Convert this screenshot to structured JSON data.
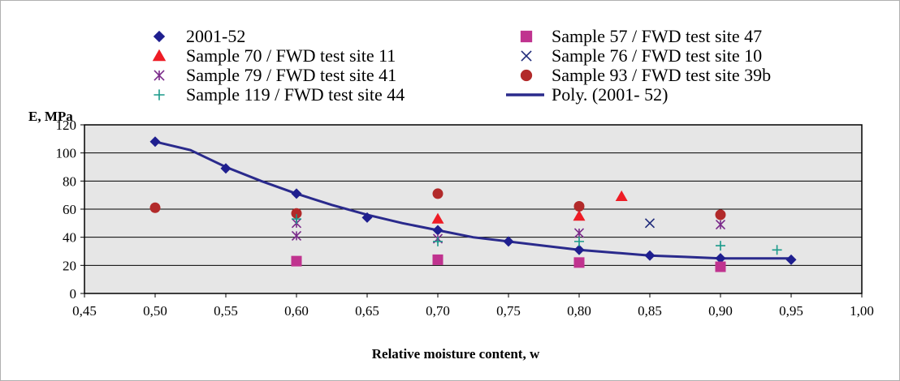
{
  "chart_data": {
    "type": "scatter",
    "xlabel": "Relative moisture content, w",
    "ylabel": "E, MPa",
    "xlim": [
      0.45,
      1.0
    ],
    "ylim": [
      0,
      120
    ],
    "x_ticks": [
      "0,45",
      "0,50",
      "0,55",
      "0,60",
      "0,65",
      "0,70",
      "0,75",
      "0,80",
      "0,85",
      "0,90",
      "0,95",
      "1,00"
    ],
    "y_ticks": [
      "0",
      "20",
      "40",
      "60",
      "80",
      "100",
      "120"
    ],
    "grid": "horizontal",
    "legend_position": "top",
    "series": [
      {
        "name": "2001-52",
        "marker": "diamond",
        "color": "#1f1f8f",
        "points": [
          [
            0.5,
            108
          ],
          [
            0.55,
            89
          ],
          [
            0.6,
            71
          ],
          [
            0.65,
            54
          ],
          [
            0.7,
            45
          ],
          [
            0.75,
            37
          ],
          [
            0.8,
            31
          ],
          [
            0.85,
            27
          ],
          [
            0.9,
            25
          ],
          [
            0.95,
            24
          ]
        ]
      },
      {
        "name": "Sample 57 / FWD test site 47",
        "marker": "square",
        "color": "#c0338f",
        "points": [
          [
            0.6,
            23
          ],
          [
            0.7,
            24
          ],
          [
            0.8,
            22
          ],
          [
            0.9,
            19
          ]
        ]
      },
      {
        "name": "Sample 70 / FWD test site 11",
        "marker": "triangle",
        "color": "#ee1c25",
        "points": [
          [
            0.7,
            53
          ],
          [
            0.8,
            55
          ],
          [
            0.83,
            69
          ]
        ]
      },
      {
        "name": "Sample 76 / FWD test site 10",
        "marker": "x",
        "color": "#1f2a7a",
        "points": [
          [
            0.85,
            50
          ]
        ]
      },
      {
        "name": "Sample 79 / FWD test site 41",
        "marker": "star",
        "color": "#7a2a8a",
        "points": [
          [
            0.6,
            41
          ],
          [
            0.6,
            50
          ],
          [
            0.7,
            39
          ],
          [
            0.8,
            43
          ],
          [
            0.9,
            49
          ]
        ]
      },
      {
        "name": "Sample 93 / FWD test site 39b",
        "marker": "circle",
        "color": "#b22a2a",
        "points": [
          [
            0.5,
            61
          ],
          [
            0.6,
            57
          ],
          [
            0.7,
            71
          ],
          [
            0.8,
            62
          ],
          [
            0.9,
            56
          ]
        ]
      },
      {
        "name": "Sample 119 / FWD test site 44",
        "marker": "plus",
        "color": "#1a9a8a",
        "points": [
          [
            0.6,
            53
          ],
          [
            0.7,
            37
          ],
          [
            0.8,
            37
          ],
          [
            0.9,
            34
          ],
          [
            0.94,
            31
          ]
        ]
      },
      {
        "name": "Poly. (2001- 52)",
        "marker": "line",
        "color": "#2a2a8c",
        "points": [
          [
            0.5,
            108
          ],
          [
            0.525,
            102
          ],
          [
            0.55,
            90
          ],
          [
            0.575,
            80
          ],
          [
            0.6,
            71
          ],
          [
            0.625,
            63
          ],
          [
            0.65,
            56
          ],
          [
            0.675,
            50
          ],
          [
            0.7,
            45
          ],
          [
            0.725,
            40
          ],
          [
            0.75,
            37
          ],
          [
            0.775,
            34
          ],
          [
            0.8,
            31
          ],
          [
            0.825,
            29
          ],
          [
            0.85,
            27
          ],
          [
            0.875,
            26
          ],
          [
            0.9,
            25
          ],
          [
            0.925,
            25
          ],
          [
            0.95,
            25
          ]
        ]
      }
    ]
  }
}
